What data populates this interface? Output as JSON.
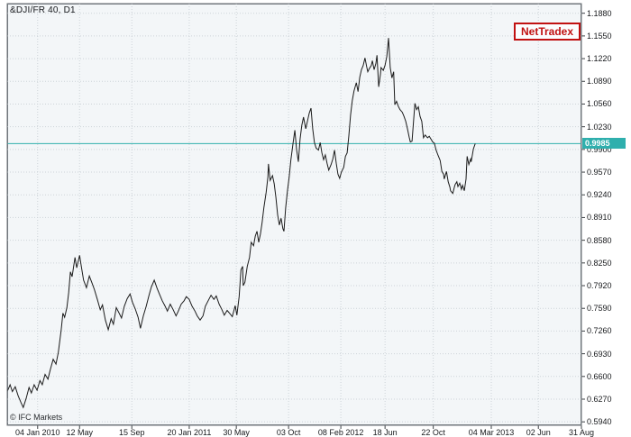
{
  "header": {
    "title": "&DJI/FR 40, D1"
  },
  "badge": {
    "label": "NetTradex"
  },
  "footer": {
    "copyright": "© IFC Markets"
  },
  "chart_data": {
    "type": "line",
    "title": "&DJI/FR 40, D1",
    "symbol": "&DJI/FR 40",
    "timeframe": "D1",
    "legend": "none",
    "grid": true,
    "current_price": 0.9985,
    "current_price_label": "0.9985",
    "ylim": [
      0.589,
      1.202
    ],
    "yticks": [
      "1.1880",
      "1.1550",
      "1.1220",
      "1.0890",
      "1.0560",
      "1.0230",
      "0.9900",
      "0.9570",
      "0.9240",
      "0.8910",
      "0.8580",
      "0.8250",
      "0.7920",
      "0.7590",
      "0.7260",
      "0.6930",
      "0.6600",
      "0.6270",
      "0.5940"
    ],
    "xticks": [
      {
        "label": "04 Jan 2010",
        "f": 0.053
      },
      {
        "label": "12 May",
        "f": 0.126
      },
      {
        "label": "15 Sep",
        "f": 0.217
      },
      {
        "label": "20 Jan 2011",
        "f": 0.317
      },
      {
        "label": "30 May",
        "f": 0.399
      },
      {
        "label": "03 Oct",
        "f": 0.49
      },
      {
        "label": "08 Feb 2012",
        "f": 0.581
      },
      {
        "label": "18 Jun",
        "f": 0.658
      },
      {
        "label": "22 Oct",
        "f": 0.742
      },
      {
        "label": "04 Mar 2013",
        "f": 0.843
      },
      {
        "label": "02 Jun",
        "f": 0.925
      },
      {
        "label": "31 Aug",
        "f": 1.0
      }
    ],
    "colors": {
      "line": "#1b1b1b",
      "grid": "#cdd3d8",
      "accent": "#2fafad",
      "badge": "#c11111",
      "plot_bg": "#f3f6f8",
      "border": "#70767b"
    },
    "points": [
      [
        0,
        0.638
      ],
      [
        0.005,
        0.648
      ],
      [
        0.009,
        0.638
      ],
      [
        0.014,
        0.645
      ],
      [
        0.019,
        0.632
      ],
      [
        0.024,
        0.622
      ],
      [
        0.028,
        0.615
      ],
      [
        0.033,
        0.628
      ],
      [
        0.038,
        0.644
      ],
      [
        0.042,
        0.636
      ],
      [
        0.047,
        0.648
      ],
      [
        0.052,
        0.64
      ],
      [
        0.057,
        0.654
      ],
      [
        0.061,
        0.648
      ],
      [
        0.066,
        0.663
      ],
      [
        0.071,
        0.656
      ],
      [
        0.075,
        0.67
      ],
      [
        0.08,
        0.685
      ],
      [
        0.085,
        0.678
      ],
      [
        0.089,
        0.695
      ],
      [
        0.094,
        0.728
      ],
      [
        0.097,
        0.752
      ],
      [
        0.1,
        0.746
      ],
      [
        0.104,
        0.76
      ],
      [
        0.107,
        0.782
      ],
      [
        0.11,
        0.812
      ],
      [
        0.113,
        0.805
      ],
      [
        0.118,
        0.833
      ],
      [
        0.121,
        0.818
      ],
      [
        0.126,
        0.836
      ],
      [
        0.129,
        0.82
      ],
      [
        0.133,
        0.8
      ],
      [
        0.138,
        0.789
      ],
      [
        0.143,
        0.806
      ],
      [
        0.148,
        0.795
      ],
      [
        0.152,
        0.786
      ],
      [
        0.157,
        0.772
      ],
      [
        0.162,
        0.757
      ],
      [
        0.166,
        0.764
      ],
      [
        0.171,
        0.742
      ],
      [
        0.176,
        0.728
      ],
      [
        0.181,
        0.744
      ],
      [
        0.185,
        0.736
      ],
      [
        0.19,
        0.76
      ],
      [
        0.195,
        0.752
      ],
      [
        0.199,
        0.745
      ],
      [
        0.204,
        0.762
      ],
      [
        0.209,
        0.773
      ],
      [
        0.214,
        0.78
      ],
      [
        0.218,
        0.768
      ],
      [
        0.223,
        0.758
      ],
      [
        0.228,
        0.746
      ],
      [
        0.232,
        0.73
      ],
      [
        0.237,
        0.748
      ],
      [
        0.242,
        0.762
      ],
      [
        0.247,
        0.778
      ],
      [
        0.251,
        0.79
      ],
      [
        0.256,
        0.8
      ],
      [
        0.261,
        0.788
      ],
      [
        0.265,
        0.78
      ],
      [
        0.27,
        0.77
      ],
      [
        0.275,
        0.762
      ],
      [
        0.279,
        0.755
      ],
      [
        0.284,
        0.765
      ],
      [
        0.289,
        0.757
      ],
      [
        0.294,
        0.748
      ],
      [
        0.298,
        0.755
      ],
      [
        0.303,
        0.765
      ],
      [
        0.308,
        0.77
      ],
      [
        0.312,
        0.776
      ],
      [
        0.317,
        0.772
      ],
      [
        0.322,
        0.762
      ],
      [
        0.327,
        0.755
      ],
      [
        0.331,
        0.748
      ],
      [
        0.336,
        0.742
      ],
      [
        0.341,
        0.748
      ],
      [
        0.345,
        0.762
      ],
      [
        0.35,
        0.77
      ],
      [
        0.355,
        0.778
      ],
      [
        0.36,
        0.772
      ],
      [
        0.364,
        0.777
      ],
      [
        0.369,
        0.765
      ],
      [
        0.374,
        0.757
      ],
      [
        0.378,
        0.749
      ],
      [
        0.383,
        0.756
      ],
      [
        0.388,
        0.751
      ],
      [
        0.392,
        0.747
      ],
      [
        0.397,
        0.763
      ],
      [
        0.4,
        0.749
      ],
      [
        0.404,
        0.776
      ],
      [
        0.407,
        0.815
      ],
      [
        0.41,
        0.82
      ],
      [
        0.411,
        0.792
      ],
      [
        0.414,
        0.797
      ],
      [
        0.418,
        0.82
      ],
      [
        0.422,
        0.833
      ],
      [
        0.425,
        0.855
      ],
      [
        0.429,
        0.85
      ],
      [
        0.432,
        0.864
      ],
      [
        0.435,
        0.871
      ],
      [
        0.438,
        0.855
      ],
      [
        0.441,
        0.867
      ],
      [
        0.444,
        0.884
      ],
      [
        0.447,
        0.905
      ],
      [
        0.451,
        0.928
      ],
      [
        0.454,
        0.95
      ],
      [
        0.455,
        0.969
      ],
      [
        0.458,
        0.945
      ],
      [
        0.462,
        0.952
      ],
      [
        0.465,
        0.94
      ],
      [
        0.468,
        0.92
      ],
      [
        0.471,
        0.895
      ],
      [
        0.474,
        0.88
      ],
      [
        0.477,
        0.89
      ],
      [
        0.48,
        0.875
      ],
      [
        0.482,
        0.871
      ],
      [
        0.485,
        0.905
      ],
      [
        0.488,
        0.93
      ],
      [
        0.491,
        0.95
      ],
      [
        0.494,
        0.975
      ],
      [
        0.498,
        1.0
      ],
      [
        0.501,
        1.018
      ],
      [
        0.504,
        0.99
      ],
      [
        0.507,
        0.972
      ],
      [
        0.51,
        1.005
      ],
      [
        0.513,
        1.025
      ],
      [
        0.516,
        1.037
      ],
      [
        0.52,
        1.02
      ],
      [
        0.523,
        1.032
      ],
      [
        0.526,
        1.043
      ],
      [
        0.529,
        1.05
      ],
      [
        0.532,
        1.02
      ],
      [
        0.535,
        1.0
      ],
      [
        0.538,
        0.992
      ],
      [
        0.542,
        0.989
      ],
      [
        0.545,
        1.0
      ],
      [
        0.548,
        0.985
      ],
      [
        0.551,
        0.975
      ],
      [
        0.554,
        0.982
      ],
      [
        0.557,
        0.97
      ],
      [
        0.56,
        0.96
      ],
      [
        0.564,
        0.968
      ],
      [
        0.567,
        0.976
      ],
      [
        0.57,
        0.989
      ],
      [
        0.573,
        0.97
      ],
      [
        0.576,
        0.954
      ],
      [
        0.579,
        0.948
      ],
      [
        0.582,
        0.957
      ],
      [
        0.586,
        0.964
      ],
      [
        0.589,
        0.98
      ],
      [
        0.592,
        0.985
      ],
      [
        0.595,
        1.01
      ],
      [
        0.598,
        1.04
      ],
      [
        0.601,
        1.061
      ],
      [
        0.604,
        1.075
      ],
      [
        0.608,
        1.087
      ],
      [
        0.611,
        1.074
      ],
      [
        0.614,
        1.095
      ],
      [
        0.617,
        1.106
      ],
      [
        0.62,
        1.112
      ],
      [
        0.623,
        1.123
      ],
      [
        0.626,
        1.11
      ],
      [
        0.628,
        1.103
      ],
      [
        0.631,
        1.108
      ],
      [
        0.634,
        1.112
      ],
      [
        0.636,
        1.119
      ],
      [
        0.639,
        1.106
      ],
      [
        0.642,
        1.115
      ],
      [
        0.644,
        1.127
      ],
      [
        0.647,
        1.081
      ],
      [
        0.65,
        1.1
      ],
      [
        0.651,
        1.109
      ],
      [
        0.655,
        1.105
      ],
      [
        0.658,
        1.112
      ],
      [
        0.661,
        1.125
      ],
      [
        0.664,
        1.152
      ],
      [
        0.667,
        1.109
      ],
      [
        0.67,
        1.094
      ],
      [
        0.673,
        1.103
      ],
      [
        0.675,
        1.055
      ],
      [
        0.678,
        1.06
      ],
      [
        0.681,
        1.053
      ],
      [
        0.684,
        1.048
      ],
      [
        0.688,
        1.044
      ],
      [
        0.691,
        1.038
      ],
      [
        0.694,
        1.031
      ],
      [
        0.697,
        1.02
      ],
      [
        0.7,
        1.008
      ],
      [
        0.702,
        1.001
      ],
      [
        0.705,
        1.002
      ],
      [
        0.708,
        1.035
      ],
      [
        0.71,
        1.057
      ],
      [
        0.713,
        1.048
      ],
      [
        0.716,
        1.052
      ],
      [
        0.719,
        1.038
      ],
      [
        0.722,
        1.031
      ],
      [
        0.725,
        1.007
      ],
      [
        0.728,
        1.011
      ],
      [
        0.732,
        1.007
      ],
      [
        0.735,
        1.009
      ],
      [
        0.738,
        1.005
      ],
      [
        0.741,
        1.001
      ],
      [
        0.744,
        0.999
      ],
      [
        0.747,
        0.989
      ],
      [
        0.75,
        0.982
      ],
      [
        0.754,
        0.974
      ],
      [
        0.757,
        0.958
      ],
      [
        0.76,
        0.954
      ],
      [
        0.761,
        0.947
      ],
      [
        0.765,
        0.958
      ],
      [
        0.768,
        0.943
      ],
      [
        0.771,
        0.935
      ],
      [
        0.772,
        0.93
      ],
      [
        0.776,
        0.926
      ],
      [
        0.779,
        0.936
      ],
      [
        0.78,
        0.939
      ],
      [
        0.783,
        0.943
      ],
      [
        0.785,
        0.936
      ],
      [
        0.788,
        0.941
      ],
      [
        0.791,
        0.932
      ],
      [
        0.793,
        0.938
      ],
      [
        0.796,
        0.93
      ],
      [
        0.799,
        0.947
      ],
      [
        0.801,
        0.98
      ],
      [
        0.804,
        0.968
      ],
      [
        0.807,
        0.976
      ],
      [
        0.808,
        0.972
      ],
      [
        0.812,
        0.991
      ],
      [
        0.815,
        0.9985
      ]
    ]
  }
}
